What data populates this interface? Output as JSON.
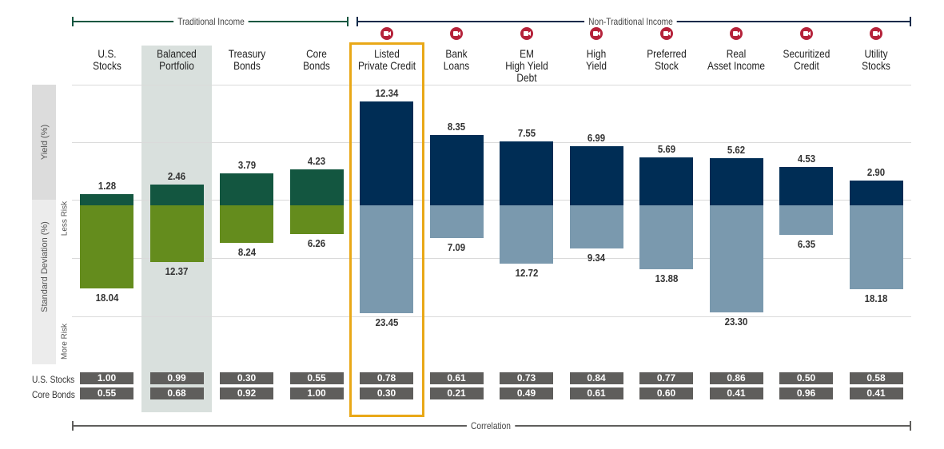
{
  "groups": {
    "traditional": "Traditional Income",
    "non_traditional": "Non-Traditional Income",
    "correlation": "Correlation"
  },
  "axis": {
    "yield": "Yield (%)",
    "std_dev": "Standard Deviation (%)",
    "less_risk": "Less Risk",
    "more_risk": "More Risk"
  },
  "correlation_rows": [
    "U.S. Stocks",
    "Core Bonds"
  ],
  "colors": {
    "traditional_yield": "#135640",
    "traditional_sd": "#648c1d",
    "non_traditional_yield": "#002d55",
    "non_traditional_sd": "#7a99ae",
    "highlight_border": "#e9a817",
    "balanced_bg": "#d9e0dd",
    "icon": "#b5223a",
    "correlation_cell": "#5f5e5c"
  },
  "chart_data": {
    "type": "bar",
    "title": "",
    "categories": [
      "U.S.\nStocks",
      "Balanced\nPortfolio",
      "Treasury\nBonds",
      "Core\nBonds",
      "Listed\nPrivate Credit",
      "Bank\nLoans",
      "EM\nHigh Yield Debt",
      "High\nYield",
      "Preferred\nStock",
      "Real\nAsset Income",
      "Securitized\nCredit",
      "Utility\nStocks"
    ],
    "category_group": [
      "traditional",
      "traditional",
      "traditional",
      "traditional",
      "non_traditional",
      "non_traditional",
      "non_traditional",
      "non_traditional",
      "non_traditional",
      "non_traditional",
      "non_traditional",
      "non_traditional"
    ],
    "has_icon": [
      false,
      false,
      false,
      false,
      true,
      true,
      true,
      true,
      true,
      true,
      true,
      true
    ],
    "highlighted": "Listed Private Credit",
    "shaded": "Balanced Portfolio",
    "series": [
      {
        "name": "Yield (%)",
        "values": [
          1.28,
          2.46,
          3.79,
          4.23,
          12.34,
          8.35,
          7.55,
          6.99,
          5.69,
          5.62,
          4.53,
          2.9
        ]
      },
      {
        "name": "Standard Deviation (%)",
        "values": [
          18.04,
          12.37,
          8.24,
          6.26,
          23.45,
          7.09,
          12.72,
          9.34,
          13.88,
          23.3,
          6.35,
          18.18
        ]
      }
    ],
    "correlation": {
      "U.S. Stocks": [
        1.0,
        0.99,
        0.3,
        0.55,
        0.78,
        0.61,
        0.73,
        0.84,
        0.77,
        0.86,
        0.5,
        0.58
      ],
      "Core Bonds": [
        0.55,
        0.68,
        0.92,
        1.0,
        0.3,
        0.21,
        0.49,
        0.61,
        0.6,
        0.41,
        0.96,
        0.41
      ]
    },
    "correlation_labels": {
      "U.S. Stocks": [
        "1.00",
        "0.99",
        "0.30",
        "0.55",
        "0.78",
        "0.61",
        "0.73",
        "0.84",
        "0.77",
        "0.86",
        "0.50",
        "0.58"
      ],
      "Core Bonds": [
        "0.55",
        "0.68",
        "0.92",
        "1.00",
        "0.30",
        "0.21",
        "0.49",
        "0.61",
        "0.60",
        "0.41",
        "0.96",
        "0.41"
      ]
    },
    "value_labels": {
      "yield": [
        "1.28",
        "2.46",
        "3.79",
        "4.23",
        "12.34",
        "8.35",
        "7.55",
        "6.99",
        "5.69",
        "5.62",
        "4.53",
        "2.90"
      ],
      "std_dev": [
        "18.04",
        "12.37",
        "8.24",
        "6.26",
        "23.45",
        "7.09",
        "12.72",
        "9.34",
        "13.88",
        "23.30",
        "6.35",
        "18.18"
      ]
    },
    "xlabel": "",
    "ylabel_top": "Yield (%)",
    "ylabel_bottom": "Standard Deviation (%)",
    "grid": true,
    "legend": "none"
  }
}
